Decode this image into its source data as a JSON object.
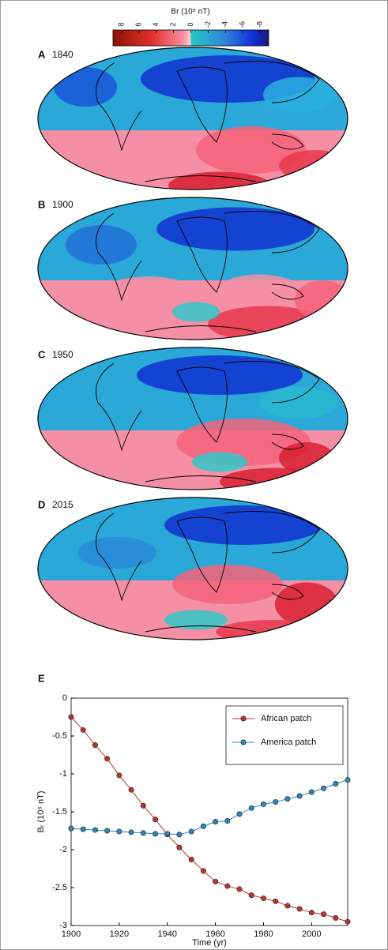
{
  "colorbar": {
    "label": "Br (10⁵ nT)",
    "ticks": [
      8,
      6,
      4,
      2,
      0,
      -2,
      -4,
      -6,
      -8
    ],
    "lim": [
      9,
      -9
    ]
  },
  "maps": [
    {
      "letter": "A",
      "year": "1840"
    },
    {
      "letter": "B",
      "year": "1900"
    },
    {
      "letter": "C",
      "year": "1950"
    },
    {
      "letter": "D",
      "year": "2015"
    }
  ],
  "chart_data": {
    "type": "line",
    "panel": "E",
    "xlabel": "Time (yr)",
    "ylabel": "Bᵣ (10⁵ nT)",
    "x": [
      1900,
      1905,
      1910,
      1915,
      1920,
      1925,
      1930,
      1935,
      1940,
      1945,
      1950,
      1955,
      1960,
      1965,
      1970,
      1975,
      1980,
      1985,
      1990,
      1995,
      2000,
      2005,
      2010,
      2015
    ],
    "series": [
      {
        "name": "African patch",
        "color": "#b8372a",
        "values": [
          -0.25,
          -0.42,
          -0.62,
          -0.8,
          -1.02,
          -1.21,
          -1.42,
          -1.6,
          -1.8,
          -1.97,
          -2.13,
          -2.28,
          -2.42,
          -2.48,
          -2.52,
          -2.6,
          -2.64,
          -2.68,
          -2.74,
          -2.78,
          -2.83,
          -2.85,
          -2.9,
          -2.95
        ]
      },
      {
        "name": "America patch",
        "color": "#2d87b8",
        "values": [
          -1.72,
          -1.73,
          -1.74,
          -1.75,
          -1.76,
          -1.77,
          -1.78,
          -1.79,
          -1.79,
          -1.8,
          -1.76,
          -1.69,
          -1.63,
          -1.62,
          -1.53,
          -1.45,
          -1.4,
          -1.37,
          -1.33,
          -1.29,
          -1.24,
          -1.19,
          -1.13,
          -1.08
        ]
      }
    ],
    "xlim": [
      1900,
      2015
    ],
    "xticks": [
      1900,
      1920,
      1940,
      1960,
      1980,
      2000
    ],
    "ylim": [
      -3,
      0
    ],
    "yticks": [
      0,
      -0.5,
      -1,
      -1.5,
      -2,
      -2.5,
      -3
    ],
    "legend": "upper right",
    "grid": false
  }
}
